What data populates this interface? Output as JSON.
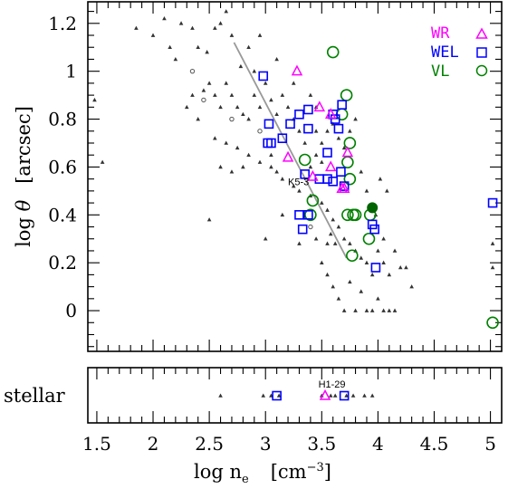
{
  "chart_data": {
    "type": "scatter",
    "title": "",
    "xlabel_main": "log n",
    "xlabel_sub": "e",
    "xlabel_unit_prefix": "[cm",
    "xlabel_unit_sup": "−3",
    "xlabel_unit_suffix": "]",
    "ylabel_main": "log ",
    "ylabel_symbol": "θ",
    "ylabel_unit": "[arcsec]",
    "stellar_label": "stellar",
    "xlim": [
      1.42,
      5.1
    ],
    "ylim": [
      -0.17,
      1.29
    ],
    "x_ticks": [
      1.5,
      2,
      2.5,
      3,
      3.5,
      4,
      4.5,
      5
    ],
    "x_tick_labels": [
      "1.5",
      "2",
      "2.5",
      "3",
      "3.5",
      "4",
      "4.5",
      "5"
    ],
    "y_ticks": [
      0,
      0.2,
      0.4,
      0.6,
      0.8,
      1,
      1.2
    ],
    "y_tick_labels": [
      "0",
      "0.2",
      "0.4",
      "0.6",
      "0.8",
      "1",
      "1.2"
    ],
    "grid": false,
    "legend_position": "top-right",
    "legend": [
      {
        "name": "WR",
        "marker": "triangle",
        "color": "#ff00ff"
      },
      {
        "name": "WEL",
        "marker": "square",
        "color": "#0000ff"
      },
      {
        "name": "VL",
        "marker": "circle",
        "color": "#008000"
      }
    ],
    "annotations": [
      {
        "text": "K5-3",
        "x": 3.2,
        "y": 0.54,
        "panel": "main"
      },
      {
        "text": "H1-29",
        "x": 3.47,
        "y": 0.5,
        "panel": "stellar"
      }
    ],
    "fit_line": {
      "x": [
        2.72,
        3.72
      ],
      "y": [
        1.12,
        0.22
      ],
      "color": "#999999"
    },
    "series": [
      {
        "name": "WR",
        "marker": "triangle",
        "color": "#ff00ff",
        "points": [
          [
            3.28,
            1.0
          ],
          [
            3.48,
            0.85
          ],
          [
            3.58,
            0.82
          ],
          [
            3.2,
            0.64
          ],
          [
            3.58,
            0.6
          ],
          [
            3.42,
            0.56
          ],
          [
            3.7,
            0.51
          ],
          [
            3.73,
            0.66
          ],
          [
            3.68,
            0.51
          ]
        ]
      },
      {
        "name": "WEL",
        "marker": "square",
        "color": "#0000ff",
        "points": [
          [
            2.98,
            0.98
          ],
          [
            3.03,
            0.78
          ],
          [
            3.15,
            0.72
          ],
          [
            3.22,
            0.78
          ],
          [
            3.38,
            0.84
          ],
          [
            3.38,
            0.76
          ],
          [
            3.3,
            0.82
          ],
          [
            3.6,
            0.82
          ],
          [
            3.68,
            0.86
          ],
          [
            3.62,
            0.8
          ],
          [
            3.05,
            0.7
          ],
          [
            3.02,
            0.7
          ],
          [
            3.65,
            0.76
          ],
          [
            3.55,
            0.66
          ],
          [
            3.35,
            0.57
          ],
          [
            3.48,
            0.55
          ],
          [
            3.55,
            0.55
          ],
          [
            3.6,
            0.54
          ],
          [
            3.67,
            0.58
          ],
          [
            3.7,
            0.52
          ],
          [
            3.3,
            0.4
          ],
          [
            3.38,
            0.4
          ],
          [
            3.33,
            0.34
          ],
          [
            3.95,
            0.36
          ],
          [
            3.97,
            0.34
          ],
          [
            3.98,
            0.18
          ],
          [
            5.02,
            0.45
          ]
        ]
      },
      {
        "name": "VL",
        "marker": "circle",
        "color": "#008000",
        "points": [
          [
            3.6,
            1.08
          ],
          [
            3.72,
            0.9
          ],
          [
            3.68,
            0.82
          ],
          [
            3.75,
            0.7
          ],
          [
            3.35,
            0.63
          ],
          [
            3.73,
            0.62
          ],
          [
            3.75,
            0.55
          ],
          [
            3.4,
            0.4
          ],
          [
            3.42,
            0.46
          ],
          [
            3.73,
            0.4
          ],
          [
            3.78,
            0.4
          ],
          [
            3.8,
            0.4
          ],
          [
            3.93,
            0.4
          ],
          [
            3.92,
            0.3
          ],
          [
            3.77,
            0.23
          ],
          [
            5.02,
            -0.05
          ]
        ]
      },
      {
        "name": "",
        "marker": "circle-filled",
        "color": "#006400",
        "points": [
          [
            3.95,
            0.43
          ]
        ]
      },
      {
        "name": "",
        "marker": "circle-small",
        "color": "#555555",
        "points": [
          [
            2.35,
            1.0
          ],
          [
            2.45,
            0.88
          ],
          [
            2.7,
            0.8
          ],
          [
            2.95,
            0.75
          ],
          [
            3.4,
            0.35
          ]
        ]
      },
      {
        "name": "",
        "marker": "small-triangle",
        "color": "#333333",
        "points": [
          [
            1.48,
            0.88
          ],
          [
            1.55,
            0.62
          ],
          [
            1.85,
            1.18
          ],
          [
            2.0,
            1.15
          ],
          [
            2.1,
            1.22
          ],
          [
            2.15,
            1.1
          ],
          [
            2.2,
            1.05
          ],
          [
            2.25,
            1.2
          ],
          [
            2.35,
            1.18
          ],
          [
            2.4,
            1.1
          ],
          [
            2.48,
            1.08
          ],
          [
            2.55,
            1.18
          ],
          [
            2.6,
            1.2
          ],
          [
            2.65,
            1.25
          ],
          [
            2.7,
            1.15
          ],
          [
            2.78,
            1.02
          ],
          [
            2.85,
            1.1
          ],
          [
            2.9,
            1.0
          ],
          [
            2.45,
            0.92
          ],
          [
            2.5,
            0.95
          ],
          [
            2.55,
            0.9
          ],
          [
            2.6,
            0.85
          ],
          [
            2.65,
            0.95
          ],
          [
            2.7,
            0.9
          ],
          [
            2.75,
            0.85
          ],
          [
            2.8,
            0.82
          ],
          [
            2.85,
            0.8
          ],
          [
            2.9,
            0.9
          ],
          [
            2.95,
            0.85
          ],
          [
            3.0,
            0.95
          ],
          [
            3.05,
            0.88
          ],
          [
            3.1,
            0.82
          ],
          [
            3.15,
            0.9
          ],
          [
            3.2,
            0.85
          ],
          [
            3.25,
            0.8
          ],
          [
            3.3,
            0.75
          ],
          [
            2.3,
            0.85
          ],
          [
            2.35,
            0.9
          ],
          [
            2.4,
            0.8
          ],
          [
            2.55,
            0.72
          ],
          [
            2.65,
            0.7
          ],
          [
            2.75,
            0.68
          ],
          [
            2.85,
            0.65
          ],
          [
            2.95,
            0.62
          ],
          [
            3.05,
            0.6
          ],
          [
            3.1,
            0.58
          ],
          [
            3.15,
            0.55
          ],
          [
            3.25,
            0.52
          ],
          [
            3.3,
            0.5
          ],
          [
            3.4,
            0.48
          ],
          [
            3.5,
            0.45
          ],
          [
            3.55,
            0.42
          ],
          [
            3.6,
            0.38
          ],
          [
            3.65,
            0.35
          ],
          [
            3.7,
            0.3
          ],
          [
            3.75,
            0.28
          ],
          [
            3.8,
            0.25
          ],
          [
            3.85,
            0.22
          ],
          [
            3.9,
            0.2
          ],
          [
            3.95,
            0.15
          ],
          [
            4.0,
            0.25
          ],
          [
            4.05,
            0.2
          ],
          [
            4.1,
            0.15
          ],
          [
            4.15,
            0.25
          ],
          [
            4.2,
            0.18
          ],
          [
            4.25,
            0.18
          ],
          [
            3.5,
            0.2
          ],
          [
            3.55,
            0.15
          ],
          [
            3.6,
            0.1
          ],
          [
            3.65,
            0.05
          ],
          [
            3.7,
            0.0
          ],
          [
            3.75,
            0.12
          ],
          [
            3.8,
            0.0
          ],
          [
            3.85,
            0.08
          ],
          [
            3.9,
            0.0
          ],
          [
            3.95,
            0.0
          ],
          [
            4.0,
            0.05
          ],
          [
            4.05,
            0.0
          ],
          [
            4.1,
            0.0
          ],
          [
            4.15,
            0.0
          ],
          [
            4.3,
            0.1
          ],
          [
            3.4,
            0.6
          ],
          [
            3.45,
            0.65
          ],
          [
            3.5,
            0.7
          ],
          [
            3.55,
            0.75
          ],
          [
            3.6,
            0.78
          ],
          [
            3.65,
            0.72
          ],
          [
            3.7,
            0.68
          ],
          [
            3.75,
            0.75
          ],
          [
            3.8,
            0.8
          ],
          [
            3.85,
            0.58
          ],
          [
            3.9,
            0.5
          ],
          [
            3.45,
            0.3
          ],
          [
            3.55,
            0.28
          ],
          [
            4.02,
            0.55
          ],
          [
            4.08,
            0.5
          ],
          [
            2.5,
            0.38
          ],
          [
            3.0,
            0.3
          ],
          [
            3.3,
            0.28
          ],
          [
            5.02,
            0.28
          ],
          [
            5.02,
            0.18
          ],
          [
            3.15,
            0.4
          ],
          [
            2.6,
            0.6
          ],
          [
            2.7,
            0.58
          ],
          [
            2.8,
            0.6
          ],
          [
            3.05,
            0.65
          ],
          [
            3.35,
            0.7
          ],
          [
            3.45,
            0.75
          ],
          [
            2.95,
            1.15
          ],
          [
            3.1,
            1.05
          ],
          [
            3.25,
            0.95
          ],
          [
            3.4,
            0.9
          ],
          [
            3.45,
            0.85
          ],
          [
            3.5,
            0.62
          ],
          [
            4.05,
            0.3
          ],
          [
            3.98,
            0.4
          ],
          [
            3.58,
            0.32
          ],
          [
            3.62,
            0.28
          ]
        ]
      }
    ],
    "stellar_series": [
      {
        "name": "",
        "marker": "small-triangle",
        "color": "#333333",
        "x": [
          2.6,
          2.98,
          3.05,
          3.12,
          3.5,
          3.58,
          3.62,
          3.72,
          3.78,
          3.88,
          3.95
        ]
      },
      {
        "name": "WEL",
        "marker": "square",
        "color": "#0000ff",
        "x": [
          3.1,
          3.7
        ]
      },
      {
        "name": "WR",
        "marker": "triangle",
        "color": "#ff00ff",
        "x": [
          3.53
        ]
      }
    ]
  }
}
